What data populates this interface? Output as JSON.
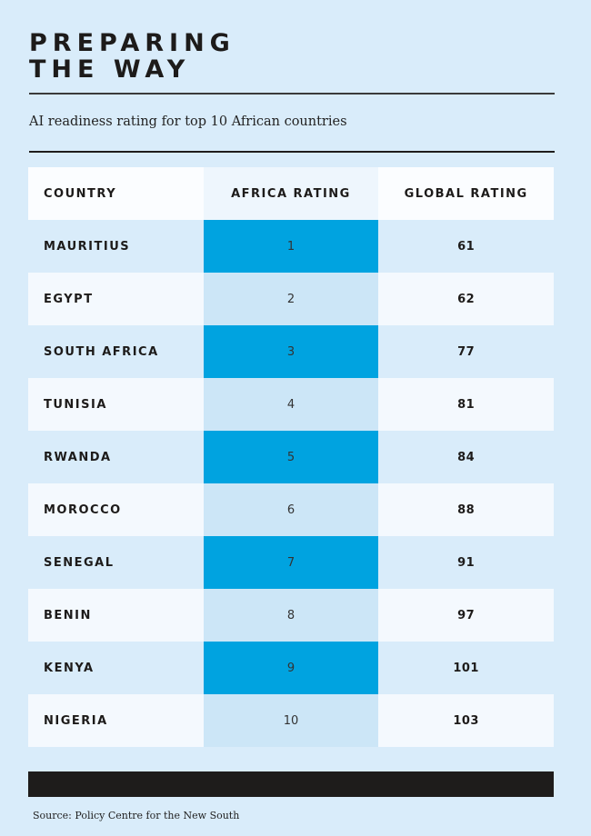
{
  "title_line1": "PREPARING",
  "title_line2": "THE WAY",
  "subtitle": "AI readiness rating for top 10 African countries",
  "columns": [
    "COUNTRY",
    "AFRICA RATING",
    "GLOBAL RATING"
  ],
  "rows": [
    [
      "MAURITIUS",
      "1",
      "61"
    ],
    [
      "EGYPT",
      "2",
      "62"
    ],
    [
      "SOUTH AFRICA",
      "3",
      "77"
    ],
    [
      "TUNISIA",
      "4",
      "81"
    ],
    [
      "RWANDA",
      "5",
      "84"
    ],
    [
      "MOROCCO",
      "6",
      "88"
    ],
    [
      "SENEGAL",
      "7",
      "91"
    ],
    [
      "BENIN",
      "8",
      "97"
    ],
    [
      "KENYA",
      "9",
      "101"
    ],
    [
      "NIGERIA",
      "10",
      "103"
    ]
  ],
  "source": "Source: Policy Centre for the New South",
  "colors": {
    "background": "#d9ecfa",
    "accent": "#00a3e0",
    "accent_light": "#cce6f7",
    "dark": "#1e1c1b"
  }
}
